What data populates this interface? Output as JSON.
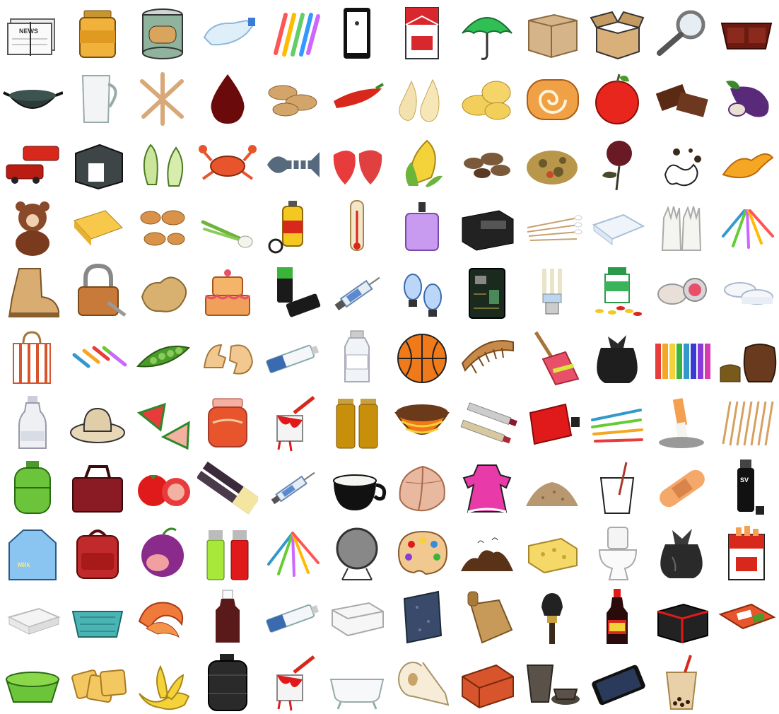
{
  "grid": {
    "columns": 12,
    "rows": 11
  },
  "labels": {
    "newspaper": "NEWS",
    "milk": "Milk",
    "mouthwash": "SV"
  },
  "items": [
    [
      "newspaper-icon",
      "honey-jar-icon",
      "tin-can-icon",
      "plastic-bottle-icon",
      "toothbrushes-icon",
      "phone-frame-icon",
      "cigarette-pack-icon",
      "umbrella-icon",
      "cardboard-box-icon",
      "open-box-icon",
      "magnifying-glass-icon",
      "takeout-tray-icon"
    ],
    [
      "wok-icon",
      "glass-jug-icon",
      "bones-icon",
      "blood-drop-icon",
      "peanuts-icon",
      "chili-pepper-icon",
      "pears-icon",
      "potato-slices-icon",
      "swiss-roll-icon",
      "apple-icon",
      "chocolate-icon",
      "eggplant-icon"
    ],
    [
      "toy-car-icon",
      "box-frame-icon",
      "cabbage-icon",
      "crab-icon",
      "fish-bone-icon",
      "strawberries-icon",
      "corn-icon",
      "tea-leaves-icon",
      "food-waste-icon",
      "dried-flower-icon",
      "stain-icon",
      "orange-peel-icon"
    ],
    [
      "teddy-bear-icon",
      "paper-pack-icon",
      "dried-leaves-icon",
      "scallion-icon",
      "insecticide-icon",
      "thermometer-icon",
      "perfume-bottle-icon",
      "battery-pack-icon",
      "cotton-swabs-icon",
      "tissue-pad-icon",
      "rubber-gloves-icon",
      "ribbon-bundle-icon"
    ],
    [
      "boot-icon",
      "padlock-icon",
      "ginger-icon",
      "cake-icon",
      "batteries-icon",
      "syringe-icon",
      "headlight-bulbs-icon",
      "circuit-board-icon",
      "energy-bulb-icon",
      "pill-bottle-icon",
      "compact-powder-icon",
      "plastic-lids-icon"
    ],
    [
      "paper-bag-icon",
      "clothespins-icon",
      "peas-icon",
      "eggshell-icon",
      "tube-icon",
      "medicine-bottle-icon",
      "basketball-icon",
      "comb-icon",
      "broom-icon",
      "trash-bag-icon",
      "crayons-icon",
      "ceramic-pots-icon"
    ],
    [
      "glass-bottle-icon",
      "straw-hat-icon",
      "watermelon-icon",
      "jam-jar-icon",
      "paint-bucket-icon",
      "amber-vials-icon",
      "bowl-icon",
      "lipsticks-icon",
      "sauce-pouch-icon",
      "toothbrush-set-icon",
      "cigarette-butt-icon",
      "chopsticks-icon"
    ],
    [
      "gas-cylinder-icon",
      "travel-bag-icon",
      "tomato-icon",
      "sugarcane-icon",
      "syringe-small-icon",
      "coffee-cup-icon",
      "seashell-icon",
      "kids-dress-icon",
      "sand-pile-icon",
      "plastic-cup-icon",
      "bandage-icon",
      "mouthwash-can-icon"
    ],
    [
      "milk-carton-icon",
      "backpack-icon",
      "plum-icon",
      "lighters-icon",
      "colored-pens-icon",
      "mirror-icon",
      "paint-palette-icon",
      "dirt-pile-icon",
      "sponge-icon",
      "toilet-icon",
      "garbage-bag-icon",
      "cigarette-box-icon"
    ],
    [
      "foam-tray-icon",
      "plastic-basket-icon",
      "shrimp-icon",
      "dark-bottle-icon",
      "tube-2-icon",
      "plastic-container-icon",
      "stone-slab-icon",
      "cutting-board-icon",
      "makeup-brush-icon",
      "soy-sauce-icon",
      "fragile-parcel-icon",
      "bento-box-icon"
    ],
    [
      "green-basin-icon",
      "crackers-icon",
      "banana-peel-icon",
      "plastic-drum-icon",
      "paint-bucket-2-icon",
      "bathtub-icon",
      "toilet-roll-icon",
      "brick-icon",
      "clay-pots-icon",
      "smartphone-icon",
      "bubble-tea-icon"
    ]
  ]
}
